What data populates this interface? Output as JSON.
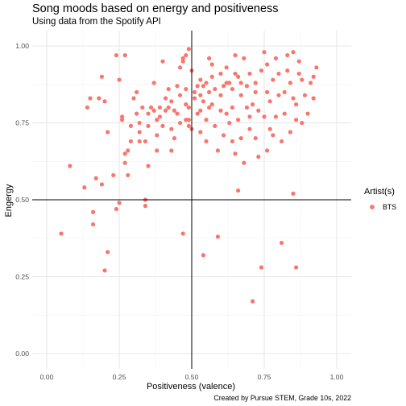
{
  "chart_data": {
    "type": "scatter",
    "title": "Song moods based on energy and positiveness",
    "subtitle": "Using data from the Spotify API",
    "xlabel": "Positiveness (valence)",
    "ylabel": "Engergy",
    "caption": "Created by Pursue STEM, Grade 10s, 2022",
    "xlim": [
      0,
      1
    ],
    "ylim": [
      0,
      1
    ],
    "xticks": [
      "0.00",
      "0.25",
      "0.50",
      "0.75",
      "1.00"
    ],
    "yticks": [
      "0.00",
      "0.25",
      "0.50",
      "0.75",
      "1.00"
    ],
    "reference_lines": {
      "x": 0.5,
      "y": 0.5
    },
    "grid": true,
    "legend": {
      "title": "Artist(s)",
      "position": "right"
    },
    "series": [
      {
        "name": "BTS",
        "color": "#F8766D",
        "points": [
          [
            0.05,
            0.39
          ],
          [
            0.08,
            0.61
          ],
          [
            0.13,
            0.54
          ],
          [
            0.14,
            0.8
          ],
          [
            0.15,
            0.83
          ],
          [
            0.16,
            0.46
          ],
          [
            0.16,
            0.42
          ],
          [
            0.17,
            0.57
          ],
          [
            0.18,
            0.83
          ],
          [
            0.19,
            0.55
          ],
          [
            0.2,
            0.27
          ],
          [
            0.21,
            0.33
          ],
          [
            0.19,
            0.9
          ],
          [
            0.2,
            0.82
          ],
          [
            0.21,
            0.72
          ],
          [
            0.23,
            0.58
          ],
          [
            0.24,
            0.97
          ],
          [
            0.24,
            0.47
          ],
          [
            0.25,
            0.89
          ],
          [
            0.25,
            0.49
          ],
          [
            0.26,
            0.76
          ],
          [
            0.26,
            0.77
          ],
          [
            0.27,
            0.97
          ],
          [
            0.27,
            0.62
          ],
          [
            0.27,
            0.65
          ],
          [
            0.28,
            0.58
          ],
          [
            0.28,
            0.66
          ],
          [
            0.29,
            0.74
          ],
          [
            0.29,
            0.69
          ],
          [
            0.3,
            0.83
          ],
          [
            0.31,
            0.85
          ],
          [
            0.31,
            0.78
          ],
          [
            0.32,
            0.72
          ],
          [
            0.32,
            0.69
          ],
          [
            0.32,
            0.75
          ],
          [
            0.33,
            0.8
          ],
          [
            0.34,
            0.69
          ],
          [
            0.34,
            0.48
          ],
          [
            0.34,
            0.5
          ],
          [
            0.35,
            0.74
          ],
          [
            0.35,
            0.61
          ],
          [
            0.35,
            0.78
          ],
          [
            0.36,
            0.8
          ],
          [
            0.37,
            0.88
          ],
          [
            0.37,
            0.79
          ],
          [
            0.38,
            0.76
          ],
          [
            0.38,
            0.71
          ],
          [
            0.38,
            0.66
          ],
          [
            0.39,
            0.8
          ],
          [
            0.39,
            0.77
          ],
          [
            0.4,
            0.74
          ],
          [
            0.4,
            0.95
          ],
          [
            0.41,
            0.83
          ],
          [
            0.41,
            0.79
          ],
          [
            0.42,
            0.86
          ],
          [
            0.42,
            0.8
          ],
          [
            0.43,
            0.82
          ],
          [
            0.43,
            0.73
          ],
          [
            0.43,
            0.66
          ],
          [
            0.44,
            0.79
          ],
          [
            0.44,
            0.7
          ],
          [
            0.45,
            0.87
          ],
          [
            0.45,
            0.78
          ],
          [
            0.46,
            0.84
          ],
          [
            0.46,
            0.93
          ],
          [
            0.46,
            0.75
          ],
          [
            0.47,
            0.95
          ],
          [
            0.47,
            0.96
          ],
          [
            0.47,
            0.39
          ],
          [
            0.48,
            0.76
          ],
          [
            0.48,
            0.81
          ],
          [
            0.48,
            0.97
          ],
          [
            0.48,
            0.86
          ],
          [
            0.49,
            0.8
          ],
          [
            0.49,
            0.76
          ],
          [
            0.49,
            0.99
          ],
          [
            0.49,
            0.74
          ],
          [
            0.5,
            0.73
          ],
          [
            0.5,
            0.92
          ],
          [
            0.51,
            0.85
          ],
          [
            0.51,
            0.83
          ],
          [
            0.52,
            0.87
          ],
          [
            0.52,
            0.78
          ],
          [
            0.53,
            0.89
          ],
          [
            0.53,
            0.84
          ],
          [
            0.53,
            0.79
          ],
          [
            0.53,
            0.72
          ],
          [
            0.54,
            0.87
          ],
          [
            0.54,
            0.82
          ],
          [
            0.54,
            0.32
          ],
          [
            0.55,
            0.88
          ],
          [
            0.55,
            0.76
          ],
          [
            0.55,
            0.69
          ],
          [
            0.56,
            0.96
          ],
          [
            0.56,
            0.85
          ],
          [
            0.56,
            0.8
          ],
          [
            0.57,
            0.94
          ],
          [
            0.57,
            0.9
          ],
          [
            0.57,
            0.81
          ],
          [
            0.58,
            0.74
          ],
          [
            0.58,
            0.86
          ],
          [
            0.59,
            0.66
          ],
          [
            0.59,
            0.38
          ],
          [
            0.6,
            0.91
          ],
          [
            0.6,
            0.84
          ],
          [
            0.6,
            0.79
          ],
          [
            0.61,
            0.87
          ],
          [
            0.61,
            0.71
          ],
          [
            0.62,
            0.93
          ],
          [
            0.62,
            0.88
          ],
          [
            0.62,
            0.78
          ],
          [
            0.63,
            0.75
          ],
          [
            0.63,
            0.88
          ],
          [
            0.64,
            0.86
          ],
          [
            0.64,
            0.8
          ],
          [
            0.64,
            0.69
          ],
          [
            0.65,
            0.91
          ],
          [
            0.65,
            0.65
          ],
          [
            0.65,
            0.97
          ],
          [
            0.66,
            0.76
          ],
          [
            0.66,
            0.9
          ],
          [
            0.66,
            0.53
          ],
          [
            0.67,
            0.88
          ],
          [
            0.67,
            0.84
          ],
          [
            0.67,
            0.7
          ],
          [
            0.68,
            0.62
          ],
          [
            0.68,
            0.96
          ],
          [
            0.69,
            0.87
          ],
          [
            0.69,
            0.8
          ],
          [
            0.7,
            0.77
          ],
          [
            0.7,
            0.91
          ],
          [
            0.7,
            0.73
          ],
          [
            0.71,
            0.17
          ],
          [
            0.71,
            0.81
          ],
          [
            0.72,
            0.88
          ],
          [
            0.72,
            0.85
          ],
          [
            0.72,
            0.7
          ],
          [
            0.73,
            0.79
          ],
          [
            0.73,
            0.64
          ],
          [
            0.74,
            0.92
          ],
          [
            0.74,
            0.28
          ],
          [
            0.75,
            0.98
          ],
          [
            0.75,
            0.77
          ],
          [
            0.76,
            0.85
          ],
          [
            0.76,
            0.94
          ],
          [
            0.76,
            0.66
          ],
          [
            0.77,
            0.82
          ],
          [
            0.77,
            0.73
          ],
          [
            0.78,
            0.89
          ],
          [
            0.78,
            0.71
          ],
          [
            0.79,
            0.96
          ],
          [
            0.79,
            0.77
          ],
          [
            0.8,
            0.84
          ],
          [
            0.8,
            0.91
          ],
          [
            0.81,
            0.69
          ],
          [
            0.81,
            0.36
          ],
          [
            0.82,
            0.85
          ],
          [
            0.82,
            0.78
          ],
          [
            0.83,
            0.92
          ],
          [
            0.83,
            0.97
          ],
          [
            0.84,
            0.88
          ],
          [
            0.84,
            0.72
          ],
          [
            0.85,
            0.98
          ],
          [
            0.85,
            0.83
          ],
          [
            0.85,
            0.52
          ],
          [
            0.86,
            0.28
          ],
          [
            0.86,
            0.81
          ],
          [
            0.86,
            0.76
          ],
          [
            0.87,
            0.95
          ],
          [
            0.87,
            0.91
          ],
          [
            0.88,
            0.89
          ],
          [
            0.88,
            0.75
          ],
          [
            0.89,
            0.84
          ],
          [
            0.9,
            0.78
          ],
          [
            0.91,
            0.88
          ],
          [
            0.92,
            0.83
          ],
          [
            0.92,
            0.9
          ],
          [
            0.93,
            0.93
          ]
        ]
      }
    ]
  }
}
